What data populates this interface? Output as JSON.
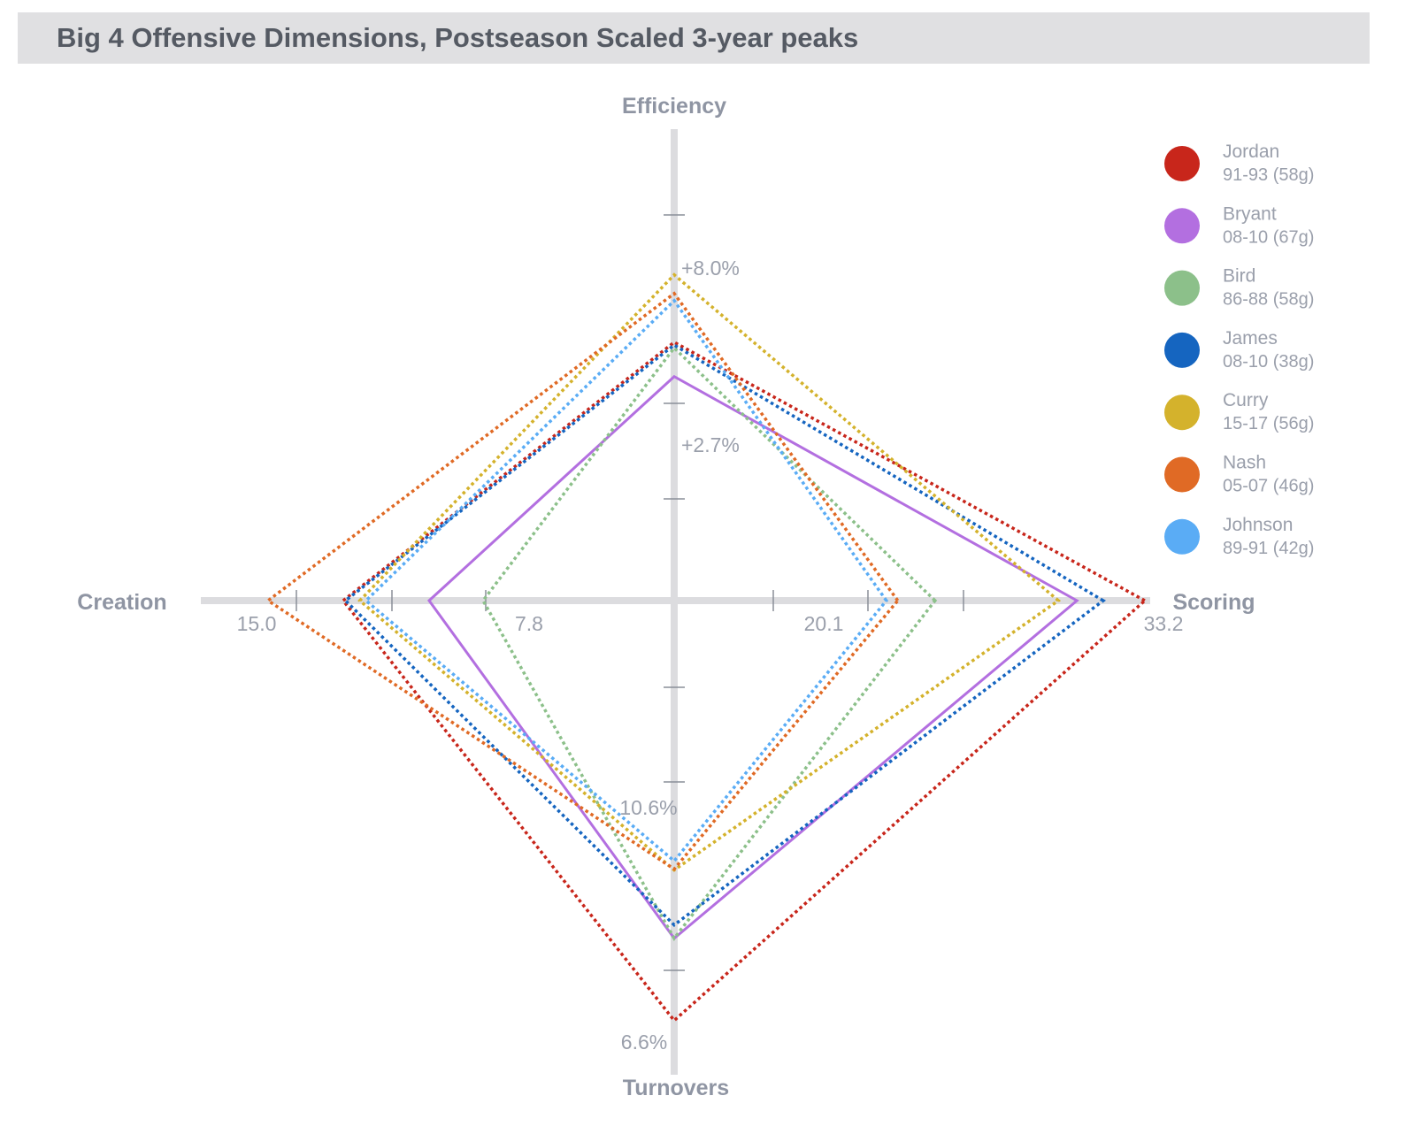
{
  "title": "Big 4 Offensive Dimensions, Postseason Scaled 3-year peaks",
  "chart_data": {
    "type": "radar",
    "title": "Big 4 Offensive Dimensions, Postseason Scaled 3-year peaks",
    "axes": [
      {
        "name": "Efficiency",
        "labels": [
          "+8.0%",
          "+2.7%"
        ]
      },
      {
        "name": "Scoring",
        "labels": [
          "20.1",
          "33.2"
        ]
      },
      {
        "name": "Turnovers",
        "labels": [
          "10.6%",
          "6.6%"
        ]
      },
      {
        "name": "Creation",
        "labels": [
          "7.8",
          "15.0"
        ]
      }
    ],
    "scale": "each axis scaled 0 (center) to 1 (outer end); Turnovers reversed (lower is better)",
    "series": [
      {
        "name": "Jordan",
        "period": "91-93 (58g)",
        "color": "#c8261b",
        "style": "dotted",
        "scoring": 0.985,
        "efficiency": 0.541,
        "turnovers": 0.879,
        "creation": 0.693
      },
      {
        "name": "Bryant",
        "period": "08-10 (67g)",
        "color": "#b36fe0",
        "style": "solid",
        "scoring": 0.843,
        "efficiency": 0.469,
        "turnovers": 0.707,
        "creation": 0.513
      },
      {
        "name": "Bird",
        "period": "86-88 (58g)",
        "color": "#8cc08a",
        "style": "dotted",
        "scoring": 0.546,
        "efficiency": 0.529,
        "turnovers": 0.707,
        "creation": 0.4
      },
      {
        "name": "James",
        "period": "08-10 (38g)",
        "color": "#1565c0",
        "style": "dotted",
        "scoring": 0.898,
        "efficiency": 0.535,
        "turnovers": 0.679,
        "creation": 0.688
      },
      {
        "name": "Curry",
        "period": "15-17 (56g)",
        "color": "#d4b22c",
        "style": "dotted",
        "scoring": 0.804,
        "efficiency": 0.682,
        "turnovers": 0.564,
        "creation": 0.658
      },
      {
        "name": "Nash",
        "period": "05-07 (46g)",
        "color": "#e06a25",
        "style": "dotted",
        "scoring": 0.468,
        "efficiency": 0.643,
        "turnovers": 0.562,
        "creation": 0.85
      },
      {
        "name": "Johnson",
        "period": "89-91 (42g)",
        "color": "#5aacf5",
        "style": "dotted",
        "scoring": 0.444,
        "efficiency": 0.628,
        "turnovers": 0.545,
        "creation": 0.645
      }
    ],
    "legend": "right",
    "grid": false
  }
}
